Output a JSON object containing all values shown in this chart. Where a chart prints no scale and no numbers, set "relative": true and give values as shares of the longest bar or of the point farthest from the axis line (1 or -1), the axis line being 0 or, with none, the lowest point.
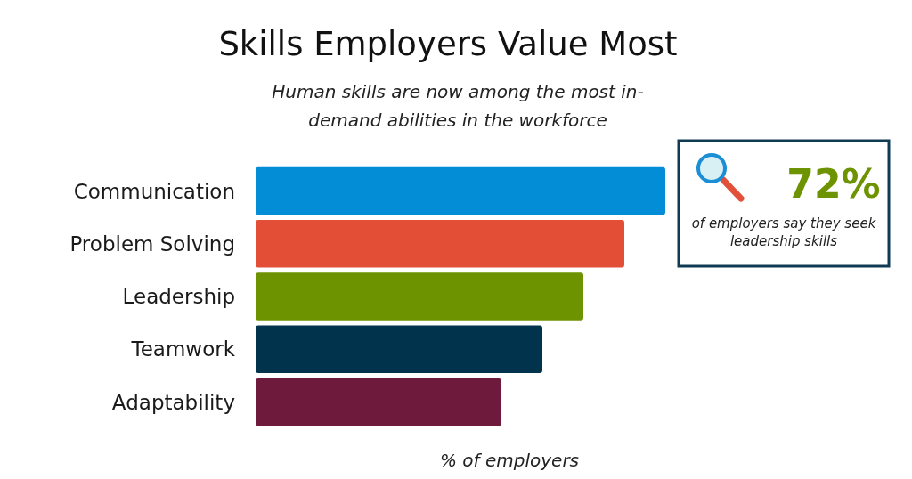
{
  "chart_data": {
    "type": "bar",
    "orientation": "horizontal",
    "relative": true,
    "title": "Skills Employers Value Most",
    "subtitle": "Human skills are now among the most in-demand abilities in the workforce",
    "xlabel": "% of employers",
    "categories": [
      "Communication",
      "Problem Solving",
      "Leadership",
      "Teamwork",
      "Adaptability"
    ],
    "values": [
      1,
      0.9,
      0.8,
      0.7,
      0.6
    ],
    "colors": [
      "#028dd6",
      "#e24f36",
      "#6e9300",
      "#01344c",
      "#6d1a3d"
    ],
    "annotations": [
      "72%",
      "of employers say they seek leadership skills"
    ]
  }
}
